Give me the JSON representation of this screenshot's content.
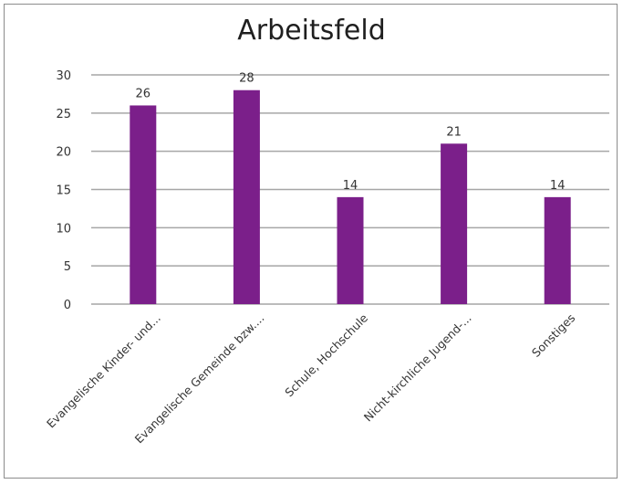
{
  "chart_data": {
    "type": "bar",
    "title": "Arbeitsfeld",
    "categories": [
      "Evangelische Kinder- und...",
      "Evangelische Gemeinde bzw....",
      "Schule, Hochschule",
      "Nicht-kirchliche Jugend-...",
      "Sonstiges"
    ],
    "values": [
      26,
      28,
      14,
      21,
      14
    ],
    "y_ticks": [
      "0",
      "5",
      "10",
      "15",
      "20",
      "25",
      "30"
    ],
    "ylim": [
      0,
      30
    ],
    "data_labels": [
      "26",
      "28",
      "14",
      "21",
      "14"
    ],
    "grid": true,
    "legend": "none",
    "bar_color": "#7b1f8a",
    "grid_color": "#a6a6a6"
  }
}
